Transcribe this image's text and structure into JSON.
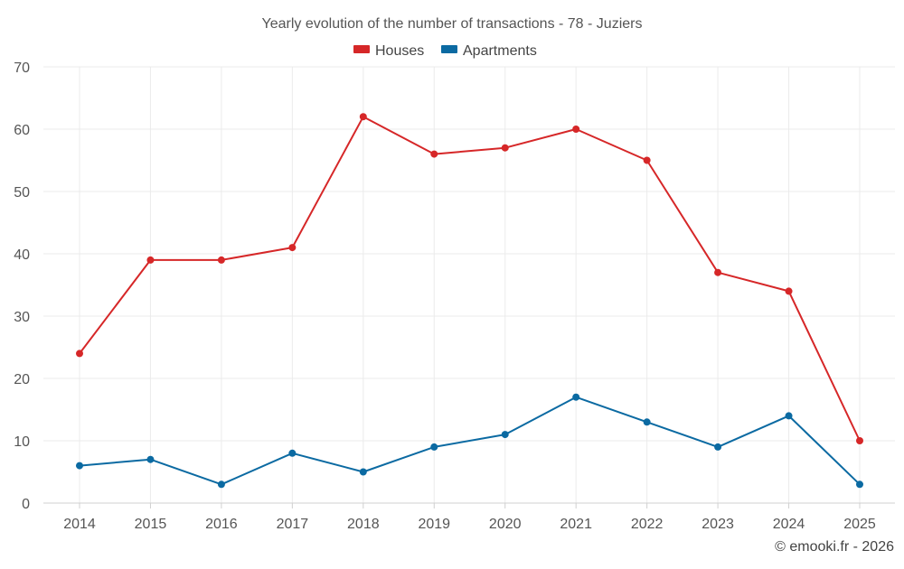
{
  "chart_data": {
    "type": "line",
    "title": "Yearly evolution of the number of transactions - 78 - Juziers",
    "xlabel": "",
    "ylabel": "",
    "x": [
      "2014",
      "2015",
      "2016",
      "2017",
      "2018",
      "2019",
      "2020",
      "2021",
      "2022",
      "2023",
      "2024",
      "2025"
    ],
    "yticks": [
      0,
      10,
      20,
      30,
      40,
      50,
      60,
      70
    ],
    "ylim": [
      0,
      70
    ],
    "grid": true,
    "legend_position": "top-center",
    "series": [
      {
        "name": "Houses",
        "color": "#d62728",
        "values": [
          24,
          39,
          39,
          41,
          62,
          56,
          57,
          60,
          55,
          37,
          34,
          10
        ]
      },
      {
        "name": "Apartments",
        "color": "#0b6aa2",
        "values": [
          6,
          7,
          3,
          8,
          5,
          9,
          11,
          17,
          13,
          9,
          14,
          3
        ]
      }
    ]
  },
  "credit": "© emooki.fr - 2026"
}
